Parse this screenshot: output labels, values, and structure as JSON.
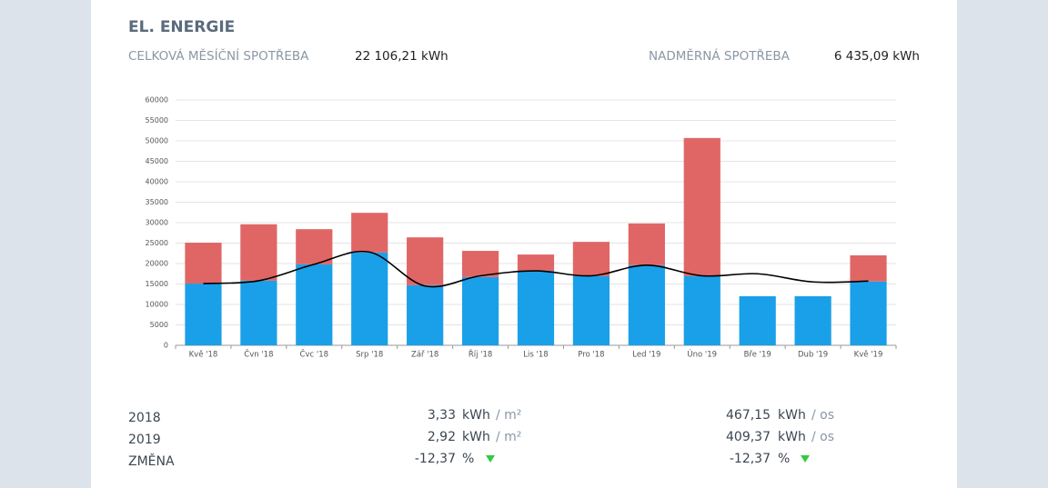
{
  "header": {
    "title": "EL. ENERGIE"
  },
  "summary": {
    "total_label": "CELKOVÁ MĚSÍČNÍ SPOTŘEBA",
    "total_value": "22 106,21 kWh",
    "excess_label": "NADMĚRNÁ SPOTŘEBA",
    "excess_value": "6 435,09 kWh"
  },
  "chart_data": {
    "type": "bar",
    "stacked": true,
    "grid": true,
    "categories": [
      "Kvě '18",
      "Čvn '18",
      "Čvc '18",
      "Srp '18",
      "Zář '18",
      "Říj '18",
      "Lis '18",
      "Pro '18",
      "Led '19",
      "Úno '19",
      "Bře '19",
      "Dub '19",
      "Kvě '19"
    ],
    "series": [
      {
        "color": "#1aa0e8",
        "values": [
          15100,
          15800,
          19800,
          22700,
          14700,
          16700,
          18200,
          16900,
          19600,
          16900,
          12000,
          12000,
          15600
        ]
      },
      {
        "color": "#e06666",
        "values": [
          10000,
          13800,
          8600,
          9700,
          11700,
          6400,
          4000,
          8400,
          10200,
          33800,
          0,
          0,
          6400
        ]
      },
      {
        "type": "line",
        "color": "#000000",
        "values": [
          15100,
          15800,
          19800,
          22800,
          14500,
          17000,
          18200,
          17000,
          19600,
          17000,
          17500,
          15500,
          15700
        ]
      }
    ],
    "ylim": [
      0,
      60000
    ],
    "yticks": [
      0,
      5000,
      10000,
      15000,
      20000,
      25000,
      30000,
      35000,
      40000,
      45000,
      50000,
      55000,
      60000
    ]
  },
  "stats": {
    "rows": [
      {
        "label": "2018",
        "area_value": "3,33",
        "area_unit": "kWh",
        "area_per": "/ m²",
        "person_value": "467,15",
        "person_unit": "kWh",
        "person_per": "/ os"
      },
      {
        "label": "2019",
        "area_value": "2,92",
        "area_unit": "kWh",
        "area_per": "/ m²",
        "person_value": "409,37",
        "person_unit": "kWh",
        "person_per": "/ os"
      },
      {
        "label": "ZMĚNA",
        "area_value": "-12,37",
        "area_unit": "%",
        "person_value": "-12,37",
        "person_unit": "%"
      }
    ]
  }
}
